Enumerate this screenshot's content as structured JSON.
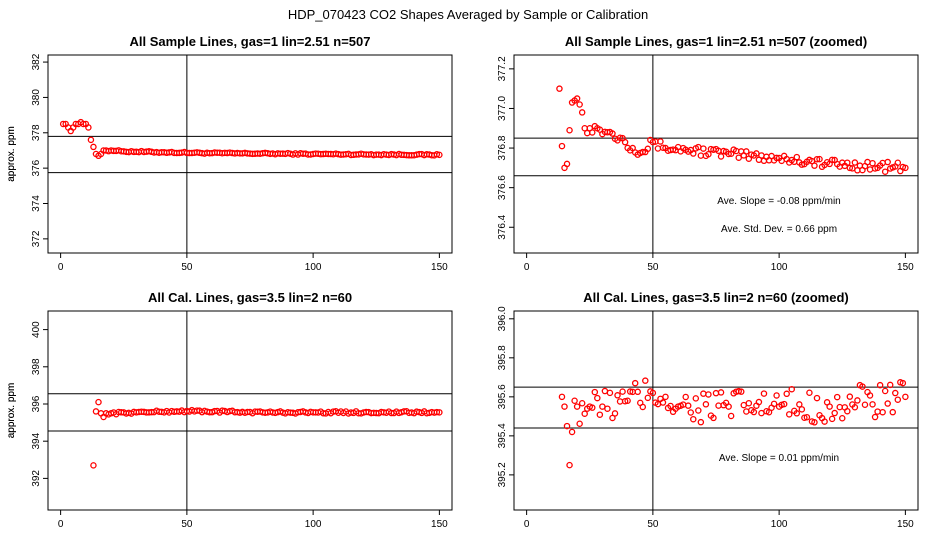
{
  "page_title": "HDP_070423  CO2 Shapes Averaged by Sample or Calibration",
  "colors": {
    "marker": "#ff0000",
    "axis": "#000000",
    "background": "#ffffff"
  },
  "chart_data": [
    {
      "id": "p1",
      "type": "scatter",
      "title": "All Sample Lines, gas=1 lin=2.51 n=507",
      "ylabel": "approx. ppm",
      "xlim": [
        -5,
        155
      ],
      "ylim": [
        371.2,
        382.4
      ],
      "xticks": [
        0,
        50,
        100,
        150
      ],
      "yticks": [
        372,
        374,
        376,
        378,
        380,
        382
      ],
      "vline": 50,
      "hlines": [
        377.8,
        375.75
      ],
      "annotations": [],
      "anchors": [
        [
          1,
          378.5
        ],
        [
          2,
          378.5
        ],
        [
          3,
          378.3
        ],
        [
          4,
          378.1
        ],
        [
          5,
          378.3
        ],
        [
          6,
          378.5
        ],
        [
          7,
          378.5
        ],
        [
          8,
          378.6
        ],
        [
          9,
          378.5
        ],
        [
          10,
          378.5
        ],
        [
          11,
          378.3
        ],
        [
          12,
          377.6
        ],
        [
          13,
          377.2
        ],
        [
          14,
          376.8
        ],
        [
          15,
          376.7
        ],
        [
          16,
          376.8
        ],
        [
          17,
          377.0
        ],
        [
          18,
          377.0
        ],
        [
          20,
          377.0
        ],
        [
          25,
          376.95
        ],
        [
          40,
          376.9
        ],
        [
          60,
          376.85
        ],
        [
          100,
          376.8
        ],
        [
          150,
          376.75
        ]
      ],
      "jitter": 0.04
    },
    {
      "id": "p2",
      "type": "scatter",
      "title": "All Sample Lines, gas=1 lin=2.51 n=507 (zoomed)",
      "ylabel": "approx. ppm",
      "xlim": [
        -5,
        155
      ],
      "ylim": [
        376.27,
        377.27
      ],
      "xticks": [
        0,
        50,
        100,
        150
      ],
      "yticks": [
        376.4,
        376.6,
        376.8,
        377.0,
        377.2
      ],
      "vline": 50,
      "hlines": [
        376.85,
        376.66
      ],
      "annotations": [
        "Ave. Slope =  -0.08  ppm/min",
        "Ave. Std. Dev. =  0.66  ppm"
      ],
      "anchors": [
        [
          13,
          377.1
        ],
        [
          14,
          376.81
        ],
        [
          15,
          376.7
        ],
        [
          16,
          376.72
        ],
        [
          17,
          376.89
        ],
        [
          18,
          377.03
        ],
        [
          19,
          377.04
        ],
        [
          20,
          377.05
        ],
        [
          21,
          377.02
        ],
        [
          22,
          376.98
        ],
        [
          23,
          376.9
        ],
        [
          25,
          376.9
        ],
        [
          28,
          376.9
        ],
        [
          32,
          376.88
        ],
        [
          38,
          376.85
        ],
        [
          42,
          376.8
        ],
        [
          46,
          376.78
        ],
        [
          50,
          376.83
        ],
        [
          55,
          376.8
        ],
        [
          65,
          376.79
        ],
        [
          80,
          376.77
        ],
        [
          100,
          376.75
        ],
        [
          120,
          376.72
        ],
        [
          150,
          376.7
        ]
      ],
      "jitter": 0.025
    },
    {
      "id": "p3",
      "type": "scatter",
      "title": "All Cal. Lines, gas=3.5 lin=2 n=60",
      "ylabel": "approx. ppm",
      "xlim": [
        -5,
        155
      ],
      "ylim": [
        390.3,
        401.0
      ],
      "xticks": [
        0,
        50,
        100,
        150
      ],
      "yticks": [
        392,
        394,
        396,
        398,
        400
      ],
      "vline": 50,
      "hlines": [
        396.55,
        394.55
      ],
      "annotations": [],
      "anchors": [
        [
          13,
          392.7
        ],
        [
          14,
          395.6
        ],
        [
          15,
          396.1
        ],
        [
          16,
          395.5
        ],
        [
          17,
          395.3
        ],
        [
          18,
          395.5
        ],
        [
          20,
          395.5
        ],
        [
          30,
          395.55
        ],
        [
          50,
          395.62
        ],
        [
          80,
          395.55
        ],
        [
          100,
          395.55
        ],
        [
          150,
          395.55
        ]
      ],
      "jitter": 0.06
    },
    {
      "id": "p4",
      "type": "scatter",
      "title": "All Cal. Lines, gas=3.5 lin=2 n=60 (zoomed)",
      "ylabel": "approx. ppm",
      "xlim": [
        -5,
        155
      ],
      "ylim": [
        395.02,
        396.04
      ],
      "xticks": [
        0,
        50,
        100,
        150
      ],
      "yticks": [
        395.2,
        395.4,
        395.6,
        395.8,
        396.0
      ],
      "vline": 50,
      "hlines": [
        395.65,
        395.44
      ],
      "annotations": [
        "Ave. Slope =  0.01  ppm/min"
      ],
      "anchors": [
        [
          14,
          395.6
        ],
        [
          15,
          395.55
        ],
        [
          16,
          395.45
        ],
        [
          17,
          395.25
        ],
        [
          18,
          395.42
        ],
        [
          19,
          395.58
        ],
        [
          20,
          395.55
        ],
        [
          25,
          395.55
        ],
        [
          30,
          395.55
        ],
        [
          40,
          395.58
        ],
        [
          50,
          395.62
        ],
        [
          55,
          395.6
        ],
        [
          60,
          395.55
        ],
        [
          80,
          395.55
        ],
        [
          100,
          395.55
        ],
        [
          120,
          395.55
        ],
        [
          150,
          395.6
        ]
      ],
      "jitter": 0.09
    }
  ]
}
